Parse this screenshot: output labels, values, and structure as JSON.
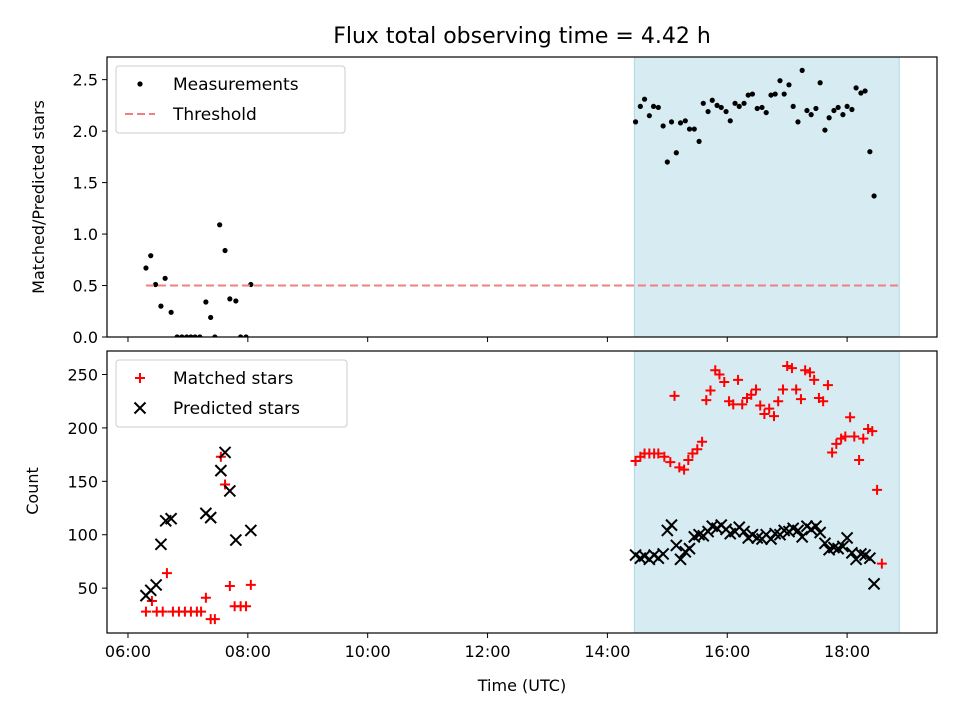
{
  "chart_data": {
    "type": "scatter",
    "title": "Flux total observing time = 4.42 h",
    "xlabel": "Time (UTC)",
    "x_tick_labels": [
      "06:00",
      "08:00",
      "10:00",
      "12:00",
      "14:00",
      "16:00",
      "18:00"
    ],
    "x_tick_values": [
      6,
      8,
      10,
      12,
      14,
      16,
      18
    ],
    "xlim": [
      5.65,
      19.5
    ],
    "observing_window": [
      14.45,
      18.87
    ],
    "window_color": "#add8e6",
    "panels": [
      {
        "ylabel": "Matched/Predicted stars",
        "ylim": [
          0,
          2.72
        ],
        "y_ticks": [
          0.0,
          0.5,
          1.0,
          1.5,
          2.0,
          2.5
        ],
        "y_tick_labels": [
          "0.0",
          "0.5",
          "1.0",
          "1.5",
          "2.0",
          "2.5"
        ],
        "legend": [
          "Measurements",
          "Threshold"
        ],
        "series": [
          {
            "name": "Measurements",
            "marker": "dot",
            "color": "#000000",
            "points": [
              [
                6.3,
                0.67
              ],
              [
                6.38,
                0.79
              ],
              [
                6.46,
                0.51
              ],
              [
                6.55,
                0.3
              ],
              [
                6.62,
                0.57
              ],
              [
                6.72,
                0.24
              ],
              [
                6.82,
                0
              ],
              [
                6.9,
                0
              ],
              [
                6.98,
                0
              ],
              [
                7.05,
                0
              ],
              [
                7.12,
                0
              ],
              [
                7.2,
                0
              ],
              [
                7.3,
                0.34
              ],
              [
                7.38,
                0.19
              ],
              [
                7.45,
                0
              ],
              [
                7.53,
                1.09
              ],
              [
                7.62,
                0.84
              ],
              [
                7.7,
                0.37
              ],
              [
                7.8,
                0.35
              ],
              [
                7.88,
                0
              ],
              [
                7.97,
                0
              ],
              [
                8.05,
                0.51
              ],
              [
                14.47,
                2.09
              ],
              [
                14.55,
                2.24
              ],
              [
                14.62,
                2.31
              ],
              [
                14.7,
                2.15
              ],
              [
                14.77,
                2.24
              ],
              [
                14.85,
                2.23
              ],
              [
                14.93,
                2.05
              ],
              [
                15.0,
                1.7
              ],
              [
                15.07,
                2.09
              ],
              [
                15.15,
                1.79
              ],
              [
                15.22,
                2.08
              ],
              [
                15.3,
                2.1
              ],
              [
                15.37,
                2.02
              ],
              [
                15.45,
                2.02
              ],
              [
                15.53,
                1.9
              ],
              [
                15.6,
                2.27
              ],
              [
                15.68,
                2.19
              ],
              [
                15.75,
                2.3
              ],
              [
                15.83,
                2.25
              ],
              [
                15.9,
                2.23
              ],
              [
                15.98,
                2.19
              ],
              [
                16.05,
                2.1
              ],
              [
                16.13,
                2.27
              ],
              [
                16.2,
                2.24
              ],
              [
                16.28,
                2.27
              ],
              [
                16.35,
                2.35
              ],
              [
                16.42,
                2.36
              ],
              [
                16.5,
                2.22
              ],
              [
                16.58,
                2.23
              ],
              [
                16.65,
                2.18
              ],
              [
                16.73,
                2.35
              ],
              [
                16.8,
                2.36
              ],
              [
                16.88,
                2.49
              ],
              [
                16.95,
                2.36
              ],
              [
                17.03,
                2.45
              ],
              [
                17.1,
                2.24
              ],
              [
                17.18,
                2.09
              ],
              [
                17.25,
                2.59
              ],
              [
                17.33,
                2.2
              ],
              [
                17.4,
                2.16
              ],
              [
                17.48,
                2.22
              ],
              [
                17.55,
                2.47
              ],
              [
                17.63,
                2.01
              ],
              [
                17.7,
                2.13
              ],
              [
                17.78,
                2.2
              ],
              [
                17.85,
                2.23
              ],
              [
                17.93,
                2.16
              ],
              [
                18.0,
                2.24
              ],
              [
                18.08,
                2.21
              ],
              [
                18.15,
                2.42
              ],
              [
                18.23,
                2.37
              ],
              [
                18.3,
                2.39
              ],
              [
                18.38,
                1.8
              ],
              [
                18.45,
                1.37
              ]
            ]
          },
          {
            "name": "Threshold",
            "type": "line",
            "style": "dashed",
            "color": "#f08080",
            "x": [
              6.3,
              18.9
            ],
            "y": [
              0.5,
              0.5
            ]
          }
        ]
      },
      {
        "ylabel": "Count",
        "ylim": [
          8,
          272
        ],
        "y_ticks": [
          50,
          100,
          150,
          200,
          250
        ],
        "y_tick_labels": [
          "50",
          "100",
          "150",
          "200",
          "250"
        ],
        "legend": [
          "Matched stars",
          "Predicted stars"
        ],
        "series": [
          {
            "name": "Matched stars",
            "marker": "plus",
            "color": "#ff0000",
            "points": [
              [
                6.3,
                28
              ],
              [
                6.4,
                38
              ],
              [
                6.48,
                28
              ],
              [
                6.58,
                28
              ],
              [
                6.65,
                64
              ],
              [
                6.75,
                28
              ],
              [
                6.85,
                28
              ],
              [
                6.95,
                28
              ],
              [
                7.05,
                28
              ],
              [
                7.15,
                28
              ],
              [
                7.22,
                28
              ],
              [
                7.3,
                41
              ],
              [
                7.38,
                21
              ],
              [
                7.45,
                21
              ],
              [
                7.55,
                173
              ],
              [
                7.62,
                147
              ],
              [
                7.7,
                52
              ],
              [
                7.78,
                33
              ],
              [
                7.88,
                33
              ],
              [
                7.97,
                33
              ],
              [
                8.05,
                53
              ],
              [
                14.47,
                169
              ],
              [
                14.55,
                173
              ],
              [
                14.62,
                176
              ],
              [
                14.7,
                176
              ],
              [
                14.78,
                176
              ],
              [
                14.85,
                176
              ],
              [
                14.95,
                173
              ],
              [
                15.05,
                168
              ],
              [
                15.12,
                230
              ],
              [
                15.2,
                163
              ],
              [
                15.28,
                161
              ],
              [
                15.35,
                170
              ],
              [
                15.42,
                176
              ],
              [
                15.5,
                180
              ],
              [
                15.58,
                187
              ],
              [
                15.65,
                226
              ],
              [
                15.72,
                235
              ],
              [
                15.8,
                254
              ],
              [
                15.87,
                250
              ],
              [
                15.95,
                243
              ],
              [
                16.03,
                225
              ],
              [
                16.1,
                222
              ],
              [
                16.18,
                245
              ],
              [
                16.25,
                222
              ],
              [
                16.33,
                228
              ],
              [
                16.4,
                231
              ],
              [
                16.48,
                236
              ],
              [
                16.55,
                221
              ],
              [
                16.62,
                213
              ],
              [
                16.7,
                218
              ],
              [
                16.78,
                211
              ],
              [
                16.85,
                225
              ],
              [
                16.93,
                236
              ],
              [
                17.0,
                258
              ],
              [
                17.08,
                256
              ],
              [
                17.15,
                236
              ],
              [
                17.23,
                227
              ],
              [
                17.3,
                254
              ],
              [
                17.38,
                252
              ],
              [
                17.45,
                245
              ],
              [
                17.53,
                228
              ],
              [
                17.6,
                225
              ],
              [
                17.68,
                240
              ],
              [
                17.75,
                177
              ],
              [
                17.82,
                185
              ],
              [
                17.9,
                190
              ],
              [
                17.97,
                192
              ],
              [
                18.05,
                210
              ],
              [
                18.12,
                192
              ],
              [
                18.2,
                170
              ],
              [
                18.27,
                190
              ],
              [
                18.35,
                199
              ],
              [
                18.42,
                197
              ],
              [
                18.5,
                142
              ],
              [
                18.58,
                73
              ]
            ]
          },
          {
            "name": "Predicted stars",
            "marker": "x",
            "color": "#000000",
            "points": [
              [
                6.3,
                43
              ],
              [
                6.38,
                48
              ],
              [
                6.47,
                53
              ],
              [
                6.55,
                91
              ],
              [
                6.63,
                113
              ],
              [
                6.72,
                115
              ],
              [
                7.3,
                120
              ],
              [
                7.38,
                116
              ],
              [
                7.55,
                160
              ],
              [
                7.62,
                177
              ],
              [
                7.7,
                141
              ],
              [
                7.8,
                95
              ],
              [
                8.05,
                104
              ],
              [
                14.47,
                81
              ],
              [
                14.55,
                78
              ],
              [
                14.62,
                80
              ],
              [
                14.7,
                77
              ],
              [
                14.78,
                81
              ],
              [
                14.85,
                78
              ],
              [
                14.93,
                82
              ],
              [
                15.0,
                104
              ],
              [
                15.07,
                109
              ],
              [
                15.15,
                90
              ],
              [
                15.22,
                77
              ],
              [
                15.3,
                84
              ],
              [
                15.37,
                87
              ],
              [
                15.45,
                98
              ],
              [
                15.53,
                100
              ],
              [
                15.6,
                99
              ],
              [
                15.68,
                103
              ],
              [
                15.75,
                108
              ],
              [
                15.83,
                106
              ],
              [
                15.9,
                109
              ],
              [
                15.98,
                105
              ],
              [
                16.05,
                101
              ],
              [
                16.13,
                103
              ],
              [
                16.2,
                107
              ],
              [
                16.28,
                103
              ],
              [
                16.35,
                97
              ],
              [
                16.42,
                100
              ],
              [
                16.5,
                97
              ],
              [
                16.58,
                96
              ],
              [
                16.65,
                100
              ],
              [
                16.73,
                96
              ],
              [
                16.8,
                101
              ],
              [
                16.88,
                100
              ],
              [
                16.95,
                104
              ],
              [
                17.03,
                103
              ],
              [
                17.1,
                106
              ],
              [
                17.18,
                104
              ],
              [
                17.25,
                98
              ],
              [
                17.33,
                108
              ],
              [
                17.4,
                105
              ],
              [
                17.48,
                108
              ],
              [
                17.55,
                102
              ],
              [
                17.63,
                92
              ],
              [
                17.7,
                86
              ],
              [
                17.78,
                88
              ],
              [
                17.85,
                87
              ],
              [
                17.93,
                89
              ],
              [
                18.0,
                97
              ],
              [
                18.08,
                83
              ],
              [
                18.15,
                77
              ],
              [
                18.23,
                82
              ],
              [
                18.3,
                81
              ],
              [
                18.38,
                78
              ],
              [
                18.45,
                54
              ]
            ]
          }
        ]
      }
    ]
  }
}
